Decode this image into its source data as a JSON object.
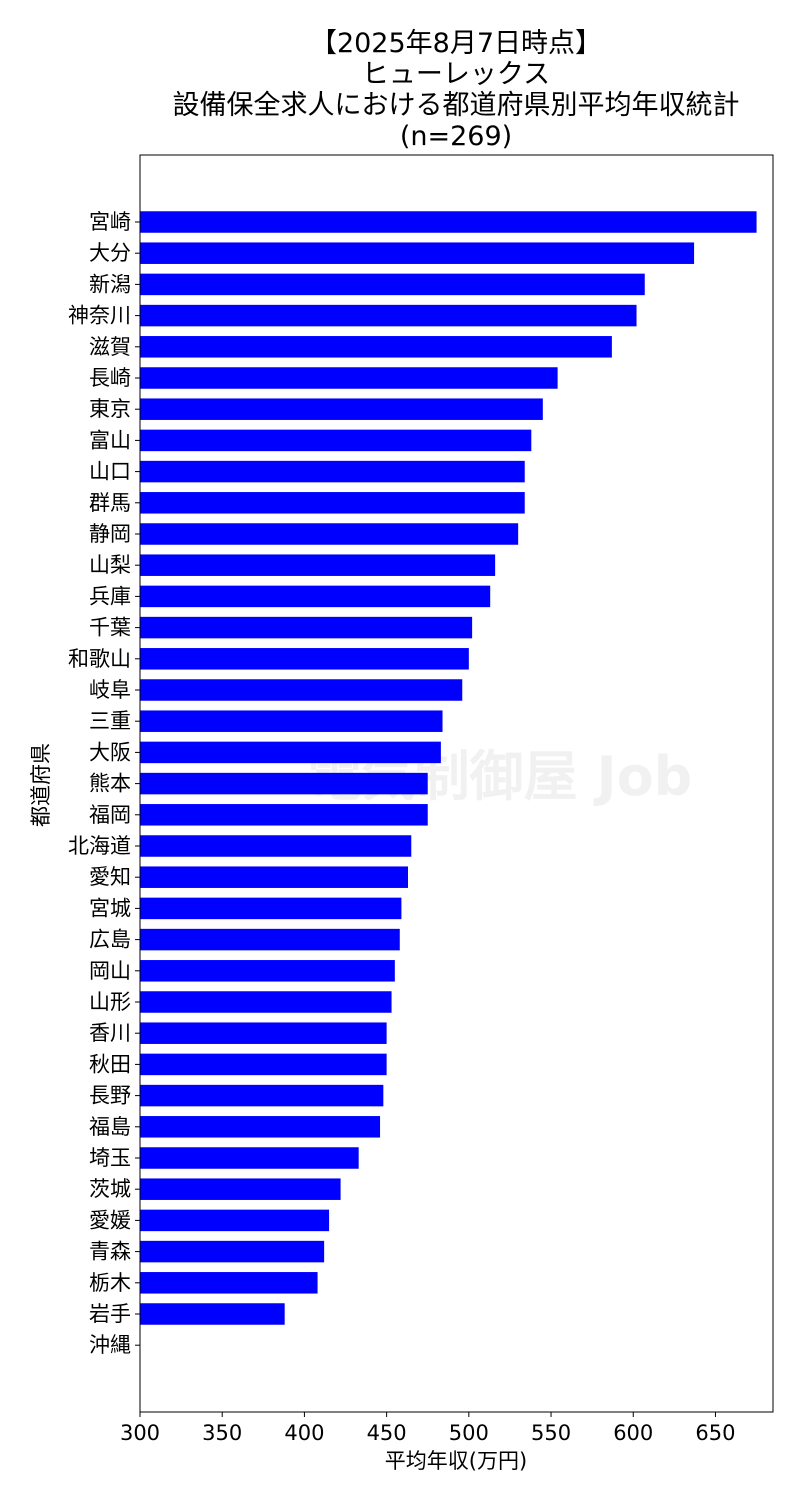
{
  "chart_data": {
    "type": "bar",
    "orientation": "horizontal",
    "title_lines": [
      "【2025年8月7日時点】",
      "ヒューレックス",
      "設備保全求人における都道府県別平均年収統計",
      "(n=269)"
    ],
    "xlabel": "平均年収(万円)",
    "ylabel": "都道府県",
    "xlim": [
      300,
      685
    ],
    "xticks": [
      300,
      350,
      400,
      450,
      500,
      550,
      600,
      650
    ],
    "bar_color": "#0000ff",
    "grid": false,
    "categories": [
      "宮崎",
      "大分",
      "新潟",
      "神奈川",
      "滋賀",
      "長崎",
      "東京",
      "富山",
      "山口",
      "群馬",
      "静岡",
      "山梨",
      "兵庫",
      "千葉",
      "和歌山",
      "岐阜",
      "三重",
      "大阪",
      "熊本",
      "福岡",
      "北海道",
      "愛知",
      "宮城",
      "広島",
      "岡山",
      "山形",
      "香川",
      "秋田",
      "長野",
      "福島",
      "埼玉",
      "茨城",
      "愛媛",
      "青森",
      "栃木",
      "岩手",
      "沖縄"
    ],
    "values": [
      675,
      637,
      607,
      602,
      587,
      554,
      545,
      538,
      534,
      534,
      530,
      516,
      513,
      502,
      500,
      496,
      484,
      483,
      475,
      475,
      465,
      463,
      459,
      458,
      455,
      453,
      450,
      450,
      448,
      446,
      433,
      422,
      415,
      412,
      408,
      388,
      null
    ]
  },
  "watermark": {
    "text": "電気制御屋 Job"
  }
}
